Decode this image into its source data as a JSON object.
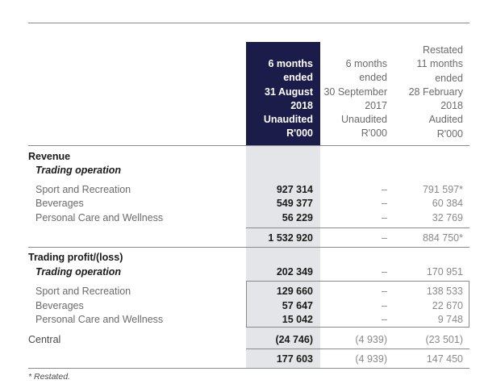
{
  "columns": {
    "current": [
      "6 months",
      "ended",
      "31 August",
      "2018",
      "Unaudited",
      "R'000"
    ],
    "prior": [
      "6 months",
      "ended",
      "30 September",
      "2017",
      "Unaudited",
      "R'000"
    ],
    "restated": [
      "Restated",
      "11 months",
      "ended",
      "28 February",
      "2018",
      "Audited",
      "R'000"
    ]
  },
  "revenue": {
    "title": "Revenue",
    "subtitle": "Trading operation",
    "rows": [
      {
        "label": "Sport and Recreation",
        "current": "927 314",
        "prior": "–",
        "restated": "791 597*"
      },
      {
        "label": "Beverages",
        "current": "549 377",
        "prior": "–",
        "restated": "60 384"
      },
      {
        "label": "Personal Care and Wellness",
        "current": "56 229",
        "prior": "–",
        "restated": "32 769"
      }
    ],
    "total": {
      "current": "1 532 920",
      "prior": "–",
      "restated": "884 750*"
    }
  },
  "profit": {
    "title": "Trading profit/(loss)",
    "subtitle": {
      "label": "Trading operation",
      "current": "202 349",
      "prior": "–",
      "restated": "170 951"
    },
    "rows": [
      {
        "label": "Sport and Recreation",
        "current": "129 660",
        "prior": "–",
        "restated": "138 533"
      },
      {
        "label": "Beverages",
        "current": "57 647",
        "prior": "–",
        "restated": "22 670"
      },
      {
        "label": "Personal Care and Wellness",
        "current": "15 042",
        "prior": "–",
        "restated": "9 748"
      }
    ],
    "central": {
      "label": "Central",
      "current": "(24 746)",
      "prior": "(4 939)",
      "restated": "(23 501)"
    },
    "total": {
      "current": "177 603",
      "prior": "(4 939)",
      "restated": "147 450"
    }
  },
  "footnote": "* Restated."
}
